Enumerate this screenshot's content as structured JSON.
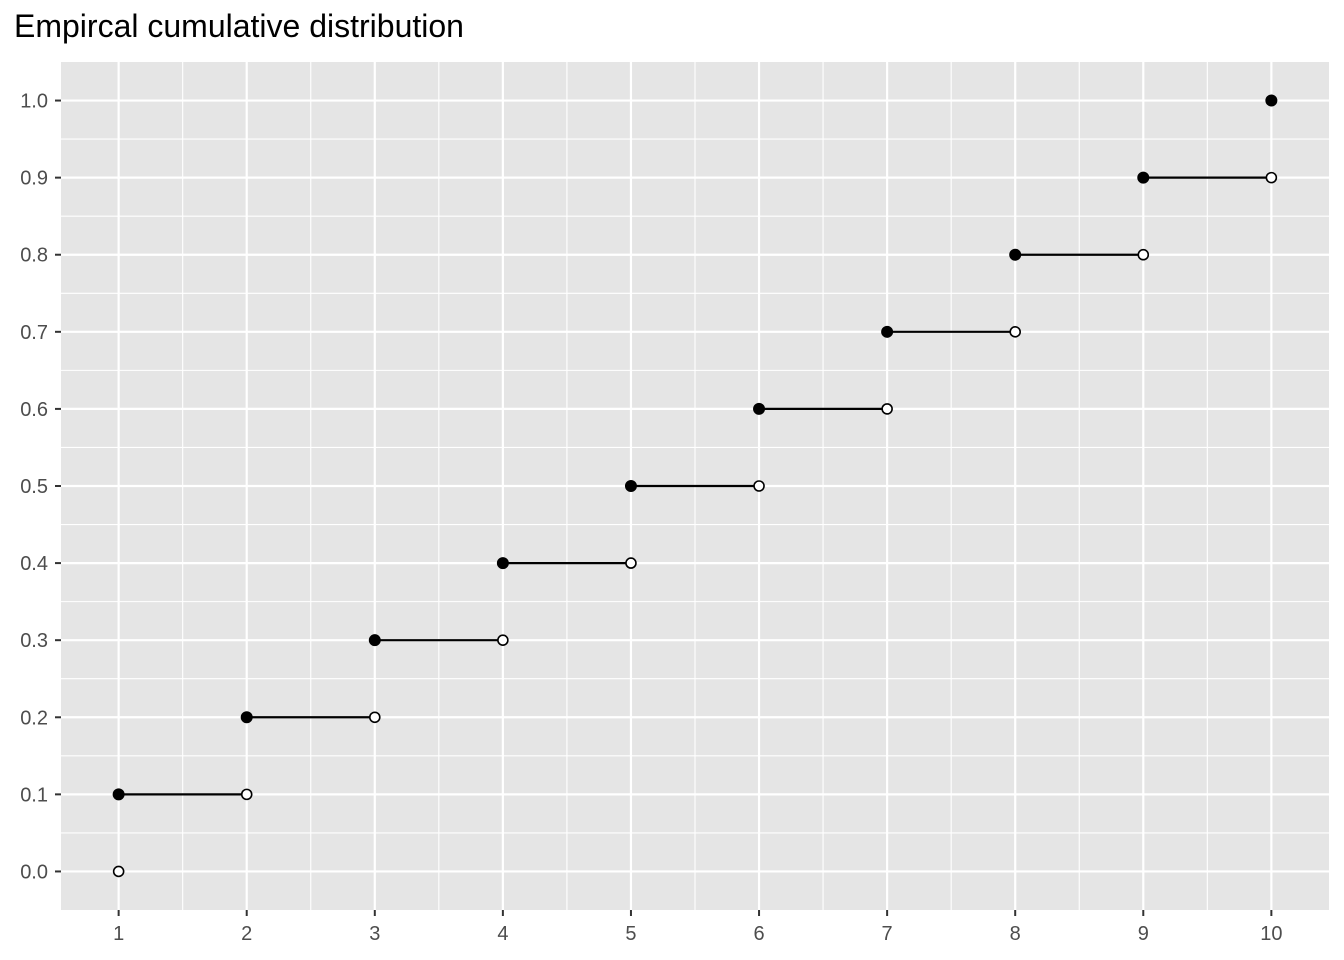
{
  "chart_data": {
    "type": "line",
    "title": "Empircal cumulative distribution",
    "xlabel": "",
    "ylabel": "",
    "xlim": [
      0.55,
      10.45
    ],
    "ylim": [
      -0.05,
      1.05
    ],
    "x_ticks": [
      "1",
      "2",
      "3",
      "4",
      "5",
      "6",
      "7",
      "8",
      "9",
      "10"
    ],
    "y_ticks": [
      "0.0",
      "0.1",
      "0.2",
      "0.3",
      "0.4",
      "0.5",
      "0.6",
      "0.7",
      "0.8",
      "0.9",
      "1.0"
    ],
    "grid": true,
    "legend": "none",
    "series": [
      {
        "style": "step segments",
        "segments": [
          {
            "x_start": 1,
            "x_end": 2,
            "y": 0.1
          },
          {
            "x_start": 2,
            "x_end": 3,
            "y": 0.2
          },
          {
            "x_start": 3,
            "x_end": 4,
            "y": 0.3
          },
          {
            "x_start": 4,
            "x_end": 5,
            "y": 0.4
          },
          {
            "x_start": 5,
            "x_end": 6,
            "y": 0.5
          },
          {
            "x_start": 6,
            "x_end": 7,
            "y": 0.6
          },
          {
            "x_start": 7,
            "x_end": 8,
            "y": 0.7
          },
          {
            "x_start": 8,
            "x_end": 9,
            "y": 0.8
          },
          {
            "x_start": 9,
            "x_end": 10,
            "y": 0.9
          }
        ]
      },
      {
        "style": "filled points",
        "x": [
          1,
          2,
          3,
          4,
          5,
          6,
          7,
          8,
          9,
          10
        ],
        "y": [
          0.1,
          0.2,
          0.3,
          0.4,
          0.5,
          0.6,
          0.7,
          0.8,
          0.9,
          1.0
        ]
      },
      {
        "style": "open points",
        "x": [
          1,
          2,
          3,
          4,
          5,
          6,
          7,
          8,
          9,
          10
        ],
        "y": [
          0.0,
          0.1,
          0.2,
          0.3,
          0.4,
          0.5,
          0.6,
          0.7,
          0.8,
          0.9
        ]
      }
    ],
    "colors": {
      "panel_background": "#e5e5e5",
      "grid": "#ffffff",
      "line": "#000000",
      "open_point_fill": "#ffffff",
      "tick_label": "#4d4d4d"
    }
  }
}
